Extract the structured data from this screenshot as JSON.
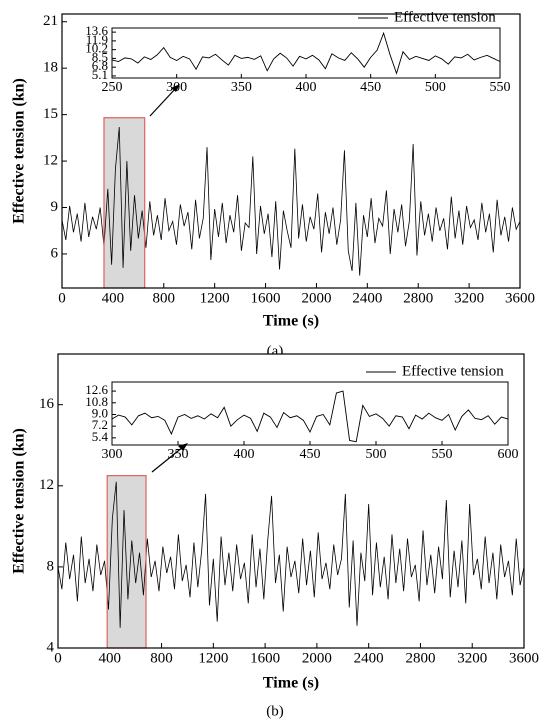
{
  "chart_data": [
    {
      "type": "line",
      "caption": "(a)",
      "x_label": "Time (s)",
      "y_label": "Effective tension (kn)",
      "xlim": [
        0,
        3600
      ],
      "ylim": [
        3.8,
        21.5
      ],
      "xticks": [
        0,
        400,
        800,
        1200,
        1600,
        2000,
        2400,
        2800,
        3200,
        3600
      ],
      "yticks": [
        6,
        9,
        12,
        15,
        18,
        21
      ],
      "highlight_x": [
        330,
        650
      ],
      "highlight_ytop": 14.8,
      "series": [
        {
          "color": "#000000",
          "x": [
            0,
            30,
            60,
            90,
            120,
            150,
            180,
            210,
            240,
            270,
            300,
            330,
            360,
            390,
            420,
            450,
            480,
            510,
            540,
            570,
            600,
            630,
            660,
            690,
            720,
            750,
            780,
            810,
            840,
            870,
            900,
            930,
            960,
            990,
            1020,
            1050,
            1080,
            1110,
            1140,
            1170,
            1200,
            1230,
            1260,
            1290,
            1320,
            1350,
            1380,
            1410,
            1440,
            1470,
            1500,
            1530,
            1560,
            1590,
            1620,
            1650,
            1680,
            1710,
            1740,
            1770,
            1800,
            1830,
            1860,
            1890,
            1920,
            1950,
            1980,
            2010,
            2040,
            2070,
            2100,
            2130,
            2160,
            2190,
            2220,
            2250,
            2280,
            2310,
            2340,
            2370,
            2400,
            2430,
            2460,
            2490,
            2520,
            2550,
            2580,
            2610,
            2640,
            2670,
            2700,
            2730,
            2760,
            2790,
            2820,
            2850,
            2880,
            2910,
            2940,
            2970,
            3000,
            3030,
            3060,
            3090,
            3120,
            3150,
            3180,
            3210,
            3240,
            3270,
            3300,
            3330,
            3360,
            3390,
            3420,
            3450,
            3480,
            3510,
            3540,
            3570,
            3600
          ],
          "values": [
            8.2,
            6.9,
            9.1,
            7.4,
            8.6,
            6.8,
            9.3,
            7.1,
            8.4,
            7.6,
            9.0,
            6.5,
            10.2,
            5.3,
            11.5,
            14.2,
            5.1,
            12.0,
            6.2,
            9.8,
            7.0,
            8.8,
            6.4,
            9.4,
            7.2,
            8.5,
            6.9,
            9.6,
            7.5,
            8.1,
            6.6,
            9.2,
            7.8,
            8.7,
            6.3,
            9.5,
            7.0,
            8.3,
            12.9,
            5.6,
            8.9,
            7.1,
            9.3,
            6.7,
            8.5,
            7.4,
            9.8,
            6.2,
            8.0,
            7.7,
            12.3,
            6.0,
            9.1,
            7.3,
            8.6,
            5.8,
            9.4,
            5.0,
            8.8,
            7.5,
            6.4,
            12.8,
            7.0,
            9.2,
            6.8,
            8.4,
            7.6,
            9.9,
            6.1,
            8.7,
            7.3,
            9.0,
            6.6,
            8.2,
            12.7,
            6.2,
            4.9,
            9.3,
            4.6,
            8.5,
            7.1,
            9.6,
            6.7,
            8.3,
            7.8,
            10.1,
            6.0,
            8.9,
            7.4,
            9.2,
            6.5,
            8.1,
            13.1,
            5.9,
            9.4,
            7.2,
            8.6,
            6.8,
            9.0,
            7.5,
            8.3,
            6.3,
            9.7,
            7.0,
            8.8,
            6.6,
            9.1,
            7.7,
            8.2,
            6.9,
            9.3,
            7.4,
            8.6,
            6.1,
            9.5,
            7.2,
            8.4,
            6.8,
            9.0,
            7.6,
            8.1
          ]
        }
      ],
      "inset": {
        "type": "line",
        "xlim": [
          250,
          550
        ],
        "ylim": [
          4.7,
          14.4
        ],
        "xticks": [
          250,
          300,
          350,
          400,
          450,
          500,
          550
        ],
        "yticks": [
          13.6,
          11.9,
          10.2,
          8.5,
          6.8,
          5.1
        ],
        "legend": "upper right",
        "series": [
          {
            "name": "Effective tension",
            "color": "#000000",
            "x": [
              250,
              255,
              260,
              265,
              270,
              275,
              280,
              285,
              290,
              295,
              300,
              305,
              310,
              315,
              320,
              325,
              330,
              335,
              340,
              345,
              350,
              355,
              360,
              365,
              370,
              375,
              380,
              385,
              390,
              395,
              400,
              405,
              410,
              415,
              420,
              425,
              430,
              435,
              440,
              445,
              450,
              455,
              460,
              465,
              470,
              475,
              480,
              485,
              490,
              495,
              500,
              505,
              510,
              515,
              520,
              525,
              530,
              535,
              540,
              545,
              550
            ],
            "values": [
              8.2,
              7.9,
              8.6,
              8.4,
              7.6,
              8.8,
              8.3,
              9.2,
              10.6,
              8.7,
              8.1,
              8.9,
              8.4,
              6.4,
              8.8,
              8.6,
              9.3,
              8.2,
              7.2,
              9.1,
              8.5,
              8.7,
              8.3,
              9.0,
              6.1,
              8.4,
              9.5,
              8.6,
              7.0,
              8.9,
              8.4,
              9.1,
              8.2,
              6.5,
              9.4,
              8.6,
              8.1,
              9.6,
              8.4,
              6.8,
              8.7,
              10.1,
              13.4,
              9.2,
              5.6,
              9.8,
              8.3,
              8.9,
              8.5,
              8.1,
              9.0,
              8.4,
              7.4,
              8.8,
              8.6,
              9.3,
              8.2,
              8.7,
              9.1,
              8.5,
              7.9
            ]
          }
        ]
      }
    },
    {
      "type": "line",
      "caption": "(b)",
      "x_label": "Time (s)",
      "y_label": "Effective tension (kn)",
      "xlim": [
        0,
        3600
      ],
      "ylim": [
        4,
        18.5
      ],
      "xticks": [
        0,
        400,
        800,
        1200,
        1600,
        2000,
        2400,
        2800,
        3200,
        3600
      ],
      "yticks": [
        4,
        8,
        12,
        16
      ],
      "highlight_x": [
        380,
        680
      ],
      "highlight_ytop": 12.5,
      "series": [
        {
          "color": "#000000",
          "x": [
            0,
            30,
            60,
            90,
            120,
            150,
            180,
            210,
            240,
            270,
            300,
            330,
            360,
            390,
            420,
            450,
            480,
            510,
            540,
            570,
            600,
            630,
            660,
            690,
            720,
            750,
            780,
            810,
            840,
            870,
            900,
            930,
            960,
            990,
            1020,
            1050,
            1080,
            1110,
            1140,
            1170,
            1200,
            1230,
            1260,
            1290,
            1320,
            1350,
            1380,
            1410,
            1440,
            1470,
            1500,
            1530,
            1560,
            1590,
            1620,
            1650,
            1680,
            1710,
            1740,
            1770,
            1800,
            1830,
            1860,
            1890,
            1920,
            1950,
            1980,
            2010,
            2040,
            2070,
            2100,
            2130,
            2160,
            2190,
            2220,
            2250,
            2280,
            2310,
            2340,
            2370,
            2400,
            2430,
            2460,
            2490,
            2520,
            2550,
            2580,
            2610,
            2640,
            2670,
            2700,
            2730,
            2760,
            2790,
            2820,
            2850,
            2880,
            2910,
            2940,
            2970,
            3000,
            3030,
            3060,
            3090,
            3120,
            3150,
            3180,
            3210,
            3240,
            3270,
            3300,
            3330,
            3360,
            3390,
            3420,
            3450,
            3480,
            3510,
            3540,
            3570,
            3600
          ],
          "values": [
            8.0,
            6.9,
            9.2,
            7.4,
            8.6,
            6.3,
            9.5,
            7.2,
            8.4,
            6.8,
            9.1,
            7.6,
            8.3,
            5.9,
            10.4,
            12.2,
            5.0,
            10.8,
            6.4,
            9.3,
            7.2,
            8.7,
            6.6,
            9.4,
            7.5,
            8.3,
            6.8,
            9.0,
            7.7,
            8.5,
            6.9,
            9.6,
            7.3,
            8.1,
            6.5,
            9.2,
            7.0,
            8.8,
            11.6,
            6.1,
            8.4,
            5.3,
            9.5,
            7.1,
            8.7,
            6.8,
            9.1,
            7.4,
            8.2,
            6.2,
            9.6,
            7.0,
            8.9,
            6.4,
            9.3,
            11.5,
            7.2,
            8.6,
            5.8,
            9.0,
            7.5,
            8.3,
            6.7,
            9.4,
            7.1,
            8.8,
            6.5,
            9.7,
            7.4,
            8.2,
            6.9,
            9.1,
            7.6,
            8.4,
            11.6,
            6.0,
            9.3,
            5.1,
            8.7,
            7.3,
            11.1,
            6.6,
            9.2,
            7.0,
            8.5,
            6.4,
            9.6,
            7.2,
            8.9,
            6.8,
            9.4,
            7.5,
            8.1,
            6.3,
            9.8,
            7.1,
            8.6,
            6.7,
            9.0,
            7.4,
            11.3,
            6.5,
            8.8,
            7.0,
            9.3,
            6.2,
            11.1,
            7.6,
            8.4,
            6.9,
            9.5,
            7.2,
            8.7,
            6.4,
            9.1,
            7.5,
            8.3,
            6.6,
            9.4,
            7.1,
            8.0
          ]
        }
      ],
      "inset": {
        "type": "line",
        "xlim": [
          300,
          600
        ],
        "ylim": [
          4.3,
          14.0
        ],
        "xticks": [
          300,
          350,
          400,
          450,
          500,
          550,
          600
        ],
        "yticks": [
          12.6,
          10.8,
          {
            "value": 9,
            "label": "9.0"
          },
          7.2,
          5.4
        ],
        "legend": "upper right",
        "series": [
          {
            "name": "Effective tension",
            "color": "#000000",
            "x": [
              300,
              305,
              310,
              315,
              320,
              325,
              330,
              335,
              340,
              345,
              350,
              355,
              360,
              365,
              370,
              375,
              380,
              385,
              390,
              395,
              400,
              405,
              410,
              415,
              420,
              425,
              430,
              435,
              440,
              445,
              450,
              455,
              460,
              465,
              470,
              475,
              480,
              485,
              490,
              495,
              500,
              505,
              510,
              515,
              520,
              525,
              530,
              535,
              540,
              545,
              550,
              555,
              560,
              565,
              570,
              575,
              580,
              585,
              590,
              595,
              600
            ],
            "values": [
              8.3,
              8.9,
              8.6,
              7.4,
              8.8,
              9.2,
              8.5,
              8.7,
              8.1,
              6.0,
              8.6,
              9.0,
              8.4,
              8.8,
              8.3,
              9.1,
              8.5,
              10.1,
              7.2,
              8.2,
              8.9,
              8.4,
              6.4,
              9.2,
              8.6,
              7.0,
              9.3,
              8.5,
              8.8,
              8.1,
              6.3,
              8.7,
              9.0,
              7.4,
              12.3,
              12.6,
              5.0,
              4.8,
              10.4,
              8.7,
              9.1,
              8.4,
              7.2,
              8.8,
              8.6,
              6.8,
              8.9,
              8.3,
              9.2,
              8.5,
              8.1,
              9.0,
              6.6,
              8.7,
              9.7,
              8.4,
              8.2,
              8.8,
              7.5,
              8.6,
              8.3
            ]
          }
        ]
      }
    }
  ]
}
